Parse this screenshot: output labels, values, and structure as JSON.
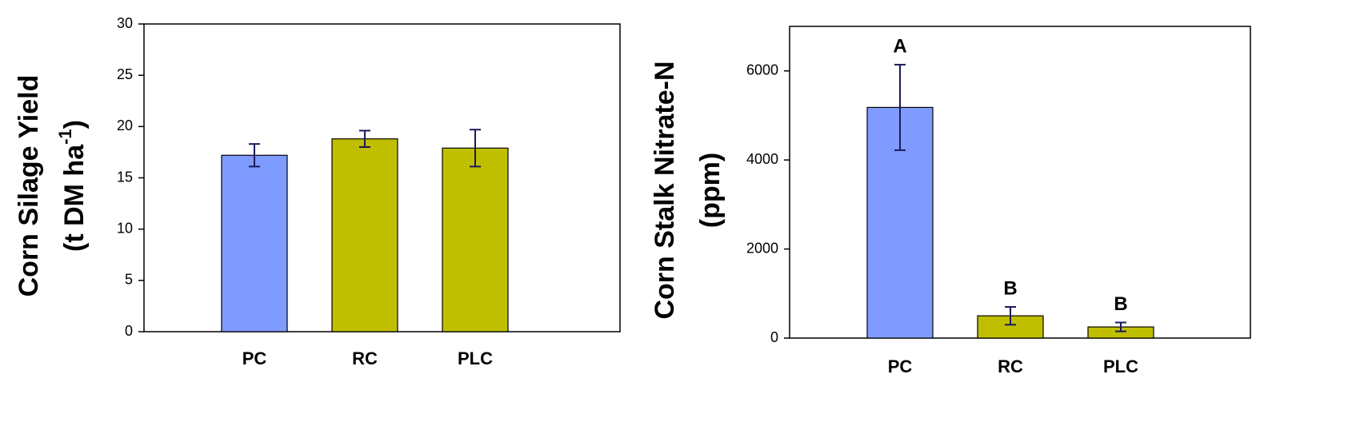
{
  "chart_data": [
    {
      "type": "bar",
      "ylabel": "Corn Silage Yield",
      "ylabel_unit": "(t DM ha",
      "ylabel_sup": "-1",
      "ylabel_close": ")",
      "categories": [
        "PC",
        "RC",
        "PLC"
      ],
      "values": [
        17.2,
        18.8,
        17.9
      ],
      "errors": [
        1.1,
        0.8,
        1.8
      ],
      "colors": [
        "#7f9bff",
        "#bfbf00",
        "#bfbf00"
      ],
      "ylim": [
        0,
        30
      ],
      "yticks": [
        0,
        5,
        10,
        15,
        20,
        25,
        30
      ]
    },
    {
      "type": "bar",
      "ylabel": "Corn Stalk Nitrate-N",
      "ylabel_unit": "(ppm)",
      "categories": [
        "PC",
        "RC",
        "PLC"
      ],
      "values": [
        5180,
        500,
        250
      ],
      "errors": [
        960,
        200,
        100
      ],
      "annotations": [
        "A",
        "B",
        "B"
      ],
      "colors": [
        "#7f9bff",
        "#bfbf00",
        "#bfbf00"
      ],
      "ylim": [
        0,
        7000
      ],
      "yticks": [
        0,
        2000,
        4000,
        6000
      ]
    }
  ]
}
